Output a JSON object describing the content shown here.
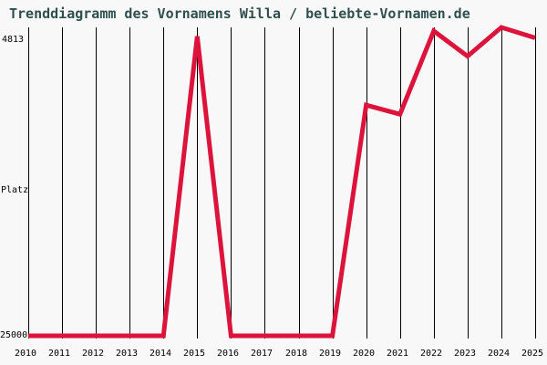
{
  "title": "Trenddiagramm des Vornamens Willa / beliebte-Vornamen.de",
  "colors": {
    "background": "#f8f8f8",
    "title_text": "#2f4f4f",
    "axis_text": "#000000",
    "gridline": "#000000",
    "line": "#dc143c"
  },
  "chart_data": {
    "type": "line",
    "title": "Trenddiagramm des Vornamens Willa / beliebte-Vornamen.de",
    "categories": [
      "2010",
      "2011",
      "2012",
      "2013",
      "2014",
      "2015",
      "2016",
      "2017",
      "2018",
      "2019",
      "2020",
      "2021",
      "2022",
      "2023",
      "2024",
      "2025"
    ],
    "series": [
      {
        "name": "Willa",
        "color": "#dc143c",
        "values": [
          25000,
          25000,
          25000,
          25000,
          25000,
          5400,
          25000,
          25000,
          25000,
          25000,
          9900,
          10500,
          5050,
          6700,
          4813,
          5500
        ]
      }
    ],
    "ylabel": "Platz",
    "xlabel": "",
    "y_axis": {
      "top_label": "4813",
      "bottom_label": "25000",
      "top_value": 4813,
      "bottom_value": 25000,
      "inverted_rank_axis": true
    },
    "grid": "vertical",
    "legend": "none"
  }
}
